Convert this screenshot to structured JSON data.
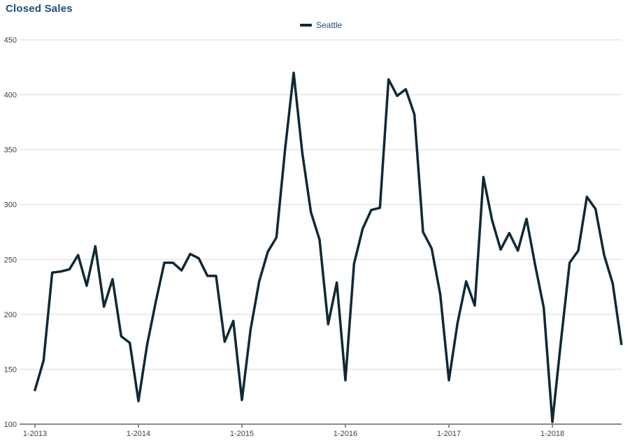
{
  "title": "Closed Sales",
  "legend": {
    "label": "Seattle",
    "marker_color": "#0f2935"
  },
  "colors": {
    "title_text": "#1f4e79",
    "legend_text": "#1f4e79",
    "axis_text": "#3f3f3f",
    "gridline": "#d9d9d9",
    "axis_line": "#8a8a8a",
    "series_line": "#0f2935",
    "background": "#ffffff"
  },
  "chart_data": {
    "type": "line",
    "title": "Closed Sales",
    "xlabel": "",
    "ylabel": "",
    "ylim": [
      100,
      450
    ],
    "y_ticks": [
      100,
      150,
      200,
      250,
      300,
      350,
      400,
      450
    ],
    "x_tick_labels": [
      "1-2013",
      "1-2014",
      "1-2015",
      "1-2016",
      "1-2017",
      "1-2018"
    ],
    "x_frequency": "monthly",
    "x_start": "1-2013",
    "x_end": "9-2018",
    "grid": "horizontal",
    "legend_position": "top-center",
    "series": [
      {
        "name": "Seattle",
        "color": "#0f2935",
        "values": [
          131,
          158,
          238,
          239,
          241,
          254,
          226,
          262,
          207,
          232,
          180,
          174,
          121,
          172,
          211,
          247,
          247,
          240,
          255,
          251,
          235,
          235,
          175,
          194,
          122,
          186,
          230,
          257,
          270,
          350,
          420,
          347,
          293,
          268,
          191,
          229,
          140,
          246,
          278,
          295,
          297,
          414,
          399,
          405,
          382,
          275,
          260,
          218,
          140,
          192,
          230,
          208,
          325,
          286,
          259,
          274,
          258,
          287,
          245,
          206,
          102,
          176,
          247,
          258,
          307,
          296,
          254,
          228,
          173
        ]
      }
    ]
  }
}
